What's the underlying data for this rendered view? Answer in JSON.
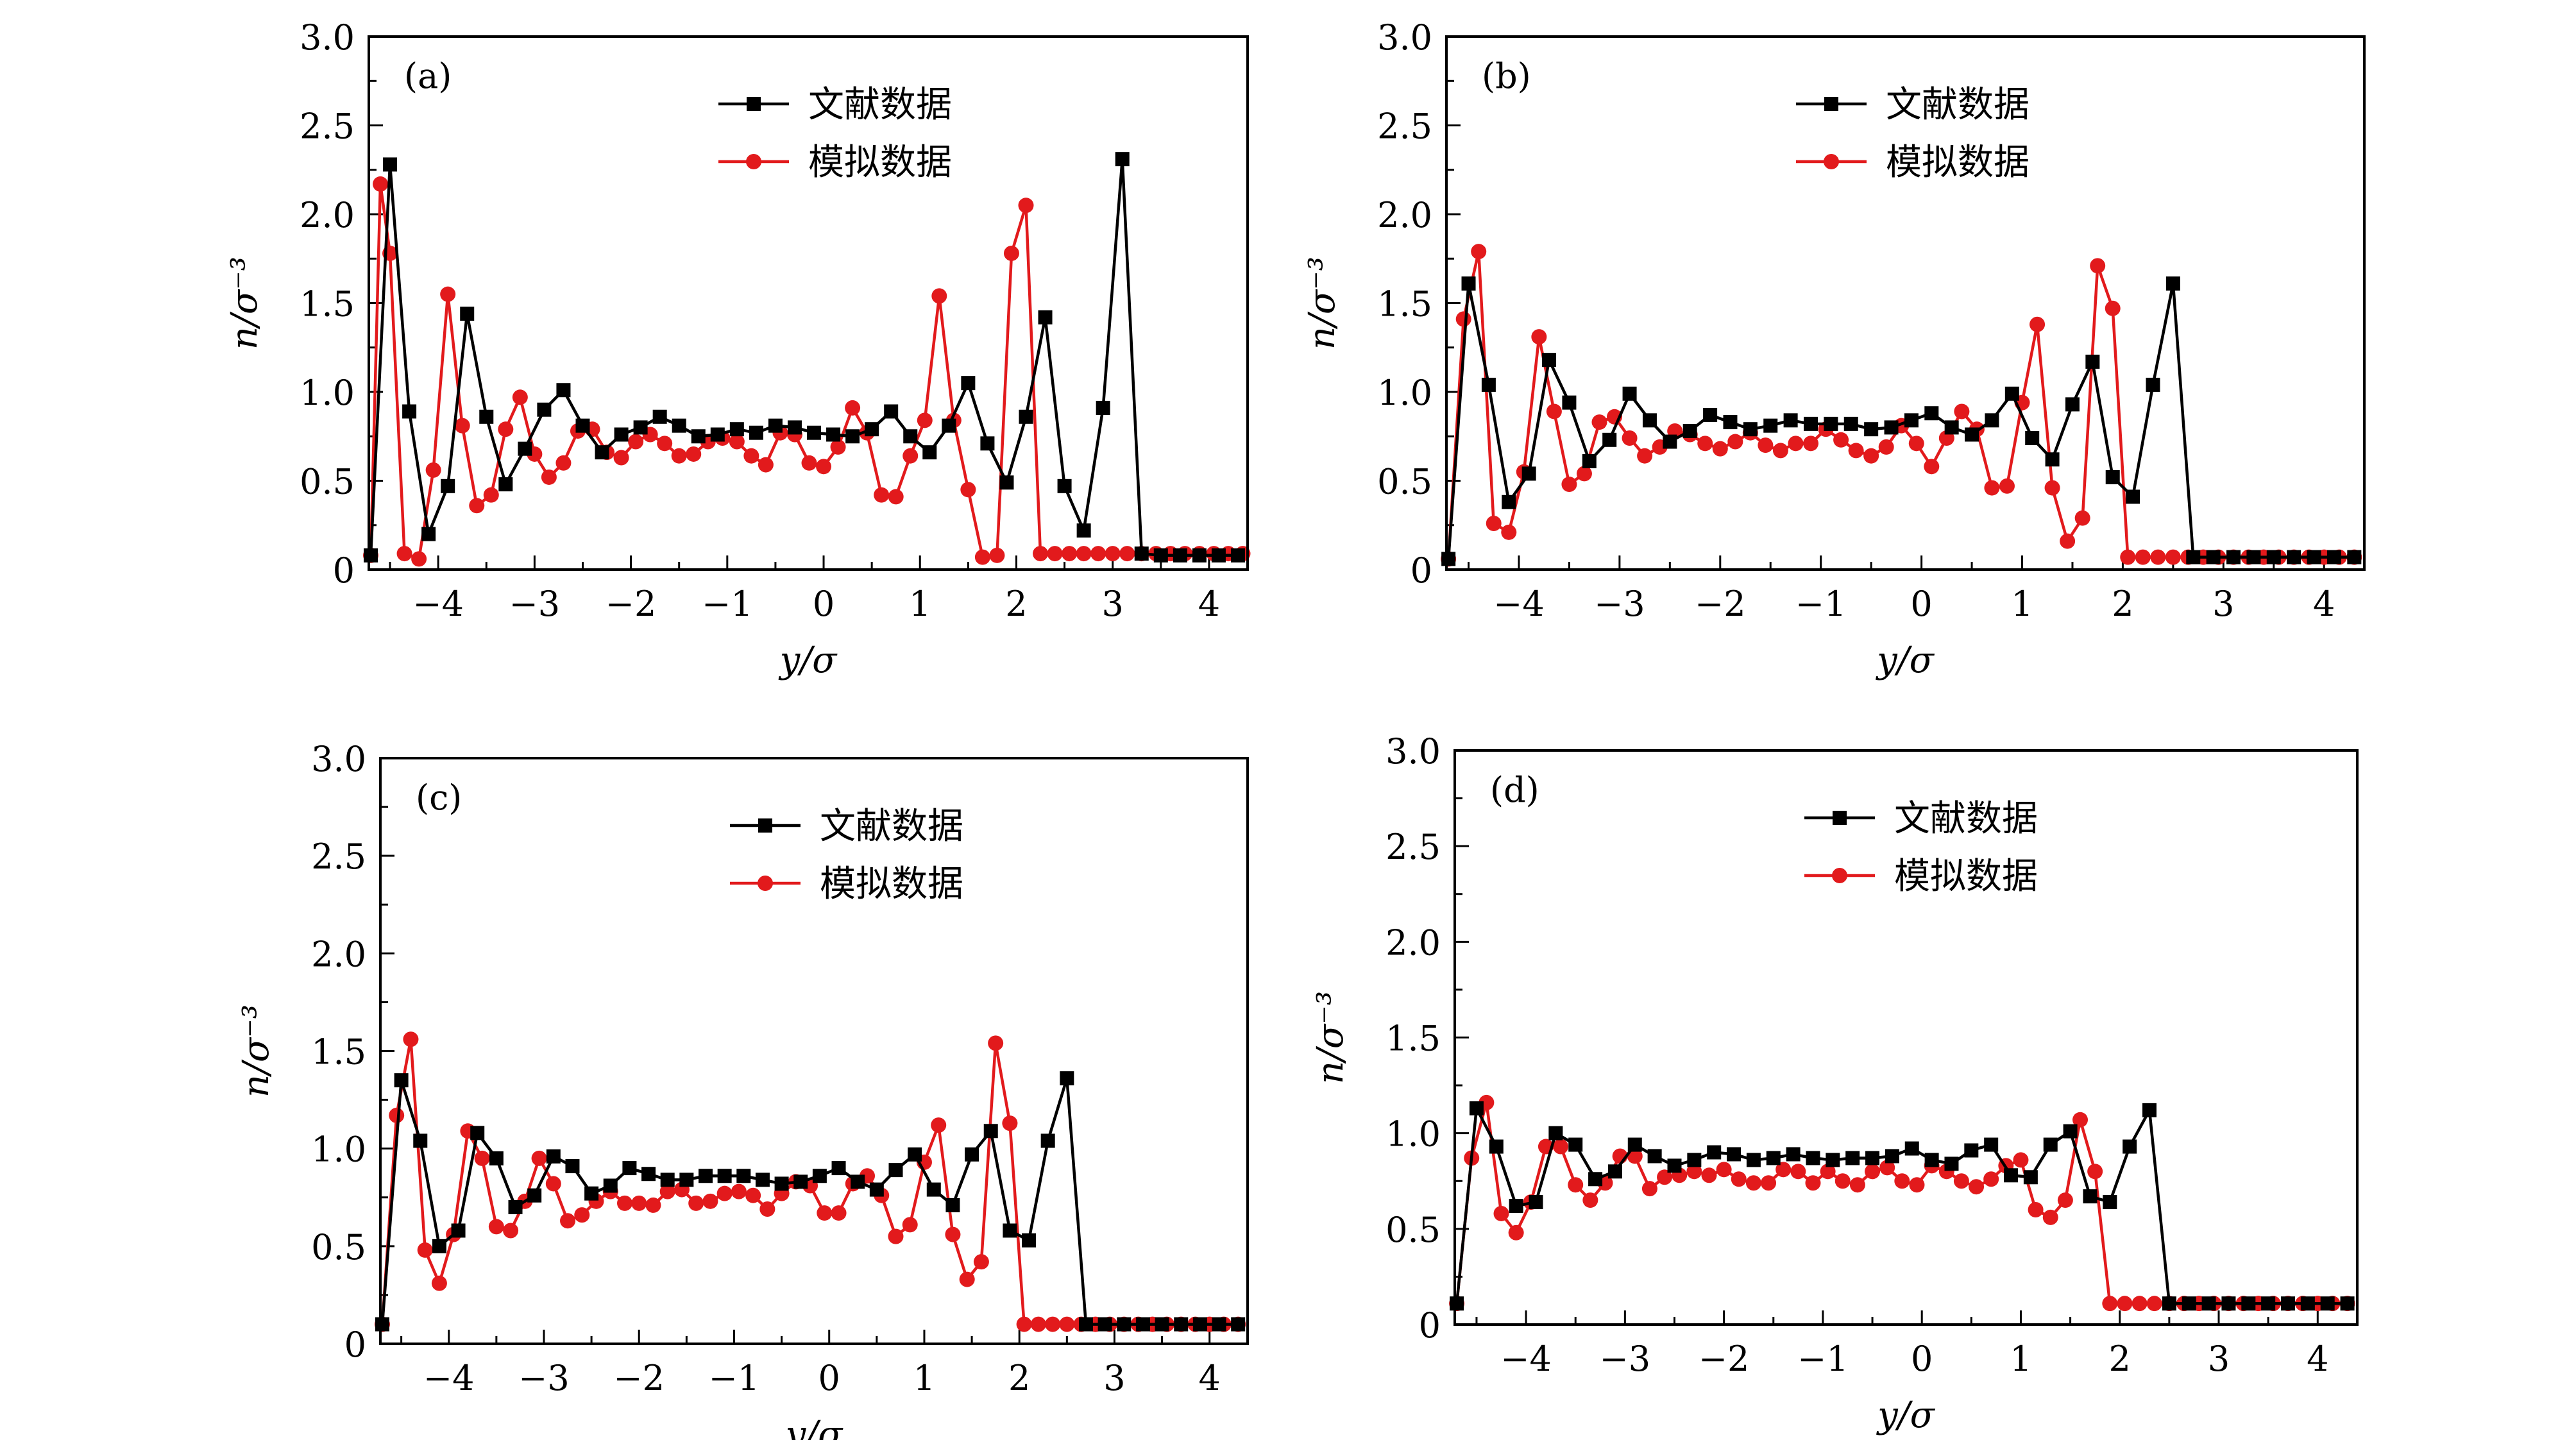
{
  "legend_labels": {
    "literature": "文献数据",
    "simulation": "模拟数据"
  },
  "colors": {
    "literature": "#000000",
    "simulation": "#e21a1c"
  },
  "axis_labels": {
    "x": "y/σ",
    "y": "n/σ⁻³"
  },
  "chart_data": [
    {
      "type": "line",
      "panel_label": "(a)",
      "xlabel": "y/σ",
      "ylabel": "n/σ⁻³",
      "xlim": [
        -4.72,
        4.4
      ],
      "ylim": [
        0,
        3.0
      ],
      "x_ticks": [
        -4,
        -3,
        -2,
        -1,
        0,
        1,
        2,
        3,
        4
      ],
      "y_ticks": [
        0,
        0.5,
        1.0,
        1.5,
        2.0,
        2.5,
        3.0
      ],
      "legend_position": "top-center",
      "series": [
        {
          "name": "文献数据",
          "marker": "square",
          "color": "#000000",
          "x": [
            -4.7,
            -4.5,
            -4.3,
            -4.1,
            -3.9,
            -3.7,
            -3.5,
            -3.3,
            -3.1,
            -2.9,
            -2.7,
            -2.5,
            -2.3,
            -2.1,
            -1.9,
            -1.7,
            -1.5,
            -1.3,
            -1.1,
            -0.9,
            -0.7,
            -0.5,
            -0.3,
            -0.1,
            0.1,
            0.3,
            0.5,
            0.7,
            0.9,
            1.1,
            1.3,
            1.5,
            1.7,
            1.9,
            2.1,
            2.3,
            2.5,
            2.7,
            2.9,
            3.1,
            3.3,
            3.5,
            3.7,
            3.9,
            4.1,
            4.3
          ],
          "y": [
            0.08,
            2.28,
            0.89,
            0.2,
            0.47,
            1.44,
            0.86,
            0.48,
            0.68,
            0.9,
            1.01,
            0.81,
            0.66,
            0.76,
            0.8,
            0.86,
            0.81,
            0.75,
            0.76,
            0.79,
            0.77,
            0.81,
            0.8,
            0.77,
            0.76,
            0.75,
            0.79,
            0.89,
            0.75,
            0.66,
            0.81,
            1.05,
            0.71,
            0.49,
            0.86,
            1.42,
            0.47,
            0.22,
            0.91,
            2.31,
            0.09,
            0.08,
            0.08,
            0.08,
            0.08,
            0.08
          ]
        },
        {
          "name": "模拟数据",
          "marker": "circle",
          "color": "#e21a1c",
          "x": [
            -4.7,
            -4.6,
            -4.5,
            -4.35,
            -4.2,
            -4.05,
            -3.9,
            -3.75,
            -3.6,
            -3.45,
            -3.3,
            -3.15,
            -3.0,
            -2.85,
            -2.7,
            -2.55,
            -2.4,
            -2.25,
            -2.1,
            -1.95,
            -1.8,
            -1.65,
            -1.5,
            -1.35,
            -1.2,
            -1.05,
            -0.9,
            -0.75,
            -0.6,
            -0.45,
            -0.3,
            -0.15,
            0.0,
            0.15,
            0.3,
            0.45,
            0.6,
            0.75,
            0.9,
            1.05,
            1.2,
            1.35,
            1.5,
            1.65,
            1.8,
            1.95,
            2.1,
            2.25,
            2.4,
            2.55,
            2.7,
            2.85,
            3.0,
            3.15,
            3.3,
            3.45,
            3.6,
            3.75,
            3.9,
            4.05,
            4.2,
            4.35
          ],
          "y": [
            0.08,
            2.17,
            1.78,
            0.09,
            0.06,
            0.56,
            1.55,
            0.81,
            0.36,
            0.42,
            0.79,
            0.97,
            0.65,
            0.52,
            0.6,
            0.78,
            0.79,
            0.66,
            0.63,
            0.72,
            0.76,
            0.71,
            0.64,
            0.65,
            0.72,
            0.74,
            0.72,
            0.64,
            0.59,
            0.77,
            0.76,
            0.6,
            0.58,
            0.69,
            0.91,
            0.77,
            0.42,
            0.41,
            0.64,
            0.84,
            1.54,
            0.84,
            0.45,
            0.07,
            0.08,
            1.78,
            2.05,
            0.09,
            0.09,
            0.09,
            0.09,
            0.09,
            0.09,
            0.09,
            0.09,
            0.09,
            0.09,
            0.09,
            0.09,
            0.09,
            0.09,
            0.09
          ]
        }
      ]
    },
    {
      "type": "line",
      "panel_label": "(b)",
      "xlabel": "y/σ",
      "ylabel": "n/σ⁻³",
      "xlim": [
        -4.72,
        4.4
      ],
      "ylim": [
        0,
        3.0
      ],
      "x_ticks": [
        -4,
        -3,
        -2,
        -1,
        0,
        1,
        2,
        3,
        4
      ],
      "y_ticks": [
        0,
        0.5,
        1.0,
        1.5,
        2.0,
        2.5,
        3.0
      ],
      "legend_position": "top-center",
      "series": [
        {
          "name": "文献数据",
          "marker": "square",
          "color": "#000000",
          "x": [
            -4.7,
            -4.5,
            -4.3,
            -4.1,
            -3.9,
            -3.7,
            -3.5,
            -3.3,
            -3.1,
            -2.9,
            -2.7,
            -2.5,
            -2.3,
            -2.1,
            -1.9,
            -1.7,
            -1.5,
            -1.3,
            -1.1,
            -0.9,
            -0.7,
            -0.5,
            -0.3,
            -0.1,
            0.1,
            0.3,
            0.5,
            0.7,
            0.9,
            1.1,
            1.3,
            1.5,
            1.7,
            1.9,
            2.1,
            2.3,
            2.5,
            2.7,
            2.9,
            3.1,
            3.3,
            3.5,
            3.7,
            3.9,
            4.1,
            4.3
          ],
          "y": [
            0.06,
            1.61,
            1.04,
            0.38,
            0.54,
            1.18,
            0.94,
            0.61,
            0.73,
            0.99,
            0.84,
            0.72,
            0.78,
            0.87,
            0.83,
            0.79,
            0.81,
            0.84,
            0.82,
            0.82,
            0.82,
            0.79,
            0.8,
            0.84,
            0.88,
            0.8,
            0.76,
            0.84,
            0.99,
            0.74,
            0.62,
            0.93,
            1.17,
            0.52,
            0.41,
            1.04,
            1.61,
            0.07,
            0.07,
            0.07,
            0.07,
            0.07,
            0.07,
            0.07,
            0.07,
            0.07
          ]
        },
        {
          "name": "模拟数据",
          "marker": "circle",
          "color": "#e21a1c",
          "x": [
            -4.7,
            -4.55,
            -4.4,
            -4.25,
            -4.1,
            -3.95,
            -3.8,
            -3.65,
            -3.5,
            -3.35,
            -3.2,
            -3.05,
            -2.9,
            -2.75,
            -2.6,
            -2.45,
            -2.3,
            -2.15,
            -2.0,
            -1.85,
            -1.7,
            -1.55,
            -1.4,
            -1.25,
            -1.1,
            -0.95,
            -0.8,
            -0.65,
            -0.5,
            -0.35,
            -0.2,
            -0.05,
            0.1,
            0.25,
            0.4,
            0.55,
            0.7,
            0.85,
            1.0,
            1.15,
            1.3,
            1.45,
            1.6,
            1.75,
            1.9,
            2.05,
            2.2,
            2.35,
            2.5,
            2.65,
            2.8,
            2.95,
            3.1,
            3.25,
            3.4,
            3.55,
            3.7,
            3.85,
            4.0,
            4.15,
            4.3
          ],
          "y": [
            0.06,
            1.41,
            1.79,
            0.26,
            0.21,
            0.55,
            1.31,
            0.89,
            0.48,
            0.54,
            0.83,
            0.86,
            0.74,
            0.64,
            0.69,
            0.78,
            0.76,
            0.71,
            0.68,
            0.72,
            0.77,
            0.7,
            0.67,
            0.71,
            0.71,
            0.79,
            0.73,
            0.67,
            0.64,
            0.69,
            0.81,
            0.71,
            0.58,
            0.74,
            0.89,
            0.79,
            0.46,
            0.47,
            0.94,
            1.38,
            0.46,
            0.16,
            0.29,
            1.71,
            1.47,
            0.07,
            0.07,
            0.07,
            0.07,
            0.07,
            0.07,
            0.07,
            0.07,
            0.07,
            0.07,
            0.07,
            0.07,
            0.07,
            0.07,
            0.07,
            0.07
          ]
        }
      ]
    },
    {
      "type": "line",
      "panel_label": "(c)",
      "xlabel": "y/σ",
      "ylabel": "n/σ⁻³",
      "xlim": [
        -4.72,
        4.4
      ],
      "ylim": [
        0,
        3.0
      ],
      "x_ticks": [
        -4,
        -3,
        -2,
        -1,
        0,
        1,
        2,
        3,
        4
      ],
      "y_ticks": [
        0,
        0.5,
        1.0,
        1.5,
        2.0,
        2.5,
        3.0
      ],
      "legend_position": "top-center",
      "series": [
        {
          "name": "文献数据",
          "marker": "square",
          "color": "#000000",
          "x": [
            -4.7,
            -4.5,
            -4.3,
            -4.1,
            -3.9,
            -3.7,
            -3.5,
            -3.3,
            -3.1,
            -2.9,
            -2.7,
            -2.5,
            -2.3,
            -2.1,
            -1.9,
            -1.7,
            -1.5,
            -1.3,
            -1.1,
            -0.9,
            -0.7,
            -0.5,
            -0.3,
            -0.1,
            0.1,
            0.3,
            0.5,
            0.7,
            0.9,
            1.1,
            1.3,
            1.5,
            1.7,
            1.9,
            2.1,
            2.3,
            2.5,
            2.7,
            2.9,
            3.1,
            3.3,
            3.5,
            3.7,
            3.9,
            4.1,
            4.3
          ],
          "y": [
            0.1,
            1.35,
            1.04,
            0.5,
            0.58,
            1.08,
            0.95,
            0.7,
            0.76,
            0.96,
            0.91,
            0.77,
            0.81,
            0.9,
            0.87,
            0.84,
            0.84,
            0.86,
            0.86,
            0.86,
            0.84,
            0.82,
            0.83,
            0.86,
            0.9,
            0.83,
            0.79,
            0.89,
            0.97,
            0.79,
            0.71,
            0.97,
            1.09,
            0.58,
            0.53,
            1.04,
            1.36,
            0.1,
            0.1,
            0.1,
            0.1,
            0.1,
            0.1,
            0.1,
            0.1,
            0.1
          ]
        },
        {
          "name": "模拟数据",
          "marker": "circle",
          "color": "#e21a1c",
          "x": [
            -4.7,
            -4.55,
            -4.4,
            -4.25,
            -4.1,
            -3.95,
            -3.8,
            -3.65,
            -3.5,
            -3.35,
            -3.2,
            -3.05,
            -2.9,
            -2.75,
            -2.6,
            -2.45,
            -2.3,
            -2.15,
            -2.0,
            -1.85,
            -1.7,
            -1.55,
            -1.4,
            -1.25,
            -1.1,
            -0.95,
            -0.8,
            -0.65,
            -0.5,
            -0.35,
            -0.2,
            -0.05,
            0.1,
            0.25,
            0.4,
            0.55,
            0.7,
            0.85,
            1.0,
            1.15,
            1.3,
            1.45,
            1.6,
            1.75,
            1.9,
            2.05,
            2.2,
            2.35,
            2.5,
            2.65,
            2.8,
            2.95,
            3.1,
            3.25,
            3.4,
            3.55,
            3.7,
            3.85,
            4.0,
            4.15,
            4.3
          ],
          "y": [
            0.1,
            1.17,
            1.56,
            0.48,
            0.31,
            0.56,
            1.09,
            0.95,
            0.6,
            0.58,
            0.73,
            0.95,
            0.82,
            0.63,
            0.66,
            0.73,
            0.78,
            0.72,
            0.72,
            0.71,
            0.78,
            0.79,
            0.72,
            0.73,
            0.77,
            0.78,
            0.76,
            0.69,
            0.77,
            0.83,
            0.81,
            0.67,
            0.67,
            0.82,
            0.86,
            0.76,
            0.55,
            0.61,
            0.93,
            1.12,
            0.56,
            0.33,
            0.42,
            1.54,
            1.13,
            0.1,
            0.1,
            0.1,
            0.1,
            0.1,
            0.1,
            0.1,
            0.1,
            0.1,
            0.1,
            0.1,
            0.1,
            0.1,
            0.1,
            0.1,
            0.1
          ]
        }
      ]
    },
    {
      "type": "line",
      "panel_label": "(d)",
      "xlabel": "y/σ",
      "ylabel": "n/σ⁻³",
      "xlim": [
        -4.72,
        4.4
      ],
      "ylim": [
        0,
        3.0
      ],
      "x_ticks": [
        -4,
        -3,
        -2,
        -1,
        0,
        1,
        2,
        3,
        4
      ],
      "y_ticks": [
        0,
        0.5,
        1.0,
        1.5,
        2.0,
        2.5,
        3.0
      ],
      "legend_position": "top-center",
      "series": [
        {
          "name": "文献数据",
          "marker": "square",
          "color": "#000000",
          "x": [
            -4.7,
            -4.5,
            -4.3,
            -4.1,
            -3.9,
            -3.7,
            -3.5,
            -3.3,
            -3.1,
            -2.9,
            -2.7,
            -2.5,
            -2.3,
            -2.1,
            -1.9,
            -1.7,
            -1.5,
            -1.3,
            -1.1,
            -0.9,
            -0.7,
            -0.5,
            -0.3,
            -0.1,
            0.1,
            0.3,
            0.5,
            0.7,
            0.9,
            1.1,
            1.3,
            1.5,
            1.7,
            1.9,
            2.1,
            2.3,
            2.5,
            2.7,
            2.9,
            3.1,
            3.3,
            3.5,
            3.7,
            3.9,
            4.1,
            4.3
          ],
          "y": [
            0.11,
            1.13,
            0.93,
            0.62,
            0.64,
            1.0,
            0.94,
            0.76,
            0.8,
            0.94,
            0.88,
            0.83,
            0.86,
            0.9,
            0.89,
            0.86,
            0.87,
            0.89,
            0.87,
            0.86,
            0.87,
            0.87,
            0.88,
            0.92,
            0.86,
            0.84,
            0.91,
            0.94,
            0.78,
            0.77,
            0.94,
            1.01,
            0.67,
            0.64,
            0.93,
            1.12,
            0.11,
            0.11,
            0.11,
            0.11,
            0.11,
            0.11,
            0.11,
            0.11,
            0.11,
            0.11
          ]
        },
        {
          "name": "模拟数据",
          "marker": "circle",
          "color": "#e21a1c",
          "x": [
            -4.7,
            -4.55,
            -4.4,
            -4.25,
            -4.1,
            -3.95,
            -3.8,
            -3.65,
            -3.5,
            -3.35,
            -3.2,
            -3.05,
            -2.9,
            -2.75,
            -2.6,
            -2.45,
            -2.3,
            -2.15,
            -2.0,
            -1.85,
            -1.7,
            -1.55,
            -1.4,
            -1.25,
            -1.1,
            -0.95,
            -0.8,
            -0.65,
            -0.5,
            -0.35,
            -0.2,
            -0.05,
            0.1,
            0.25,
            0.4,
            0.55,
            0.7,
            0.85,
            1.0,
            1.15,
            1.3,
            1.45,
            1.6,
            1.75,
            1.9,
            2.05,
            2.2,
            2.35,
            2.5,
            2.65,
            2.8,
            2.95,
            3.1,
            3.25,
            3.4,
            3.55,
            3.7,
            3.85,
            4.0,
            4.15,
            4.3
          ],
          "y": [
            0.11,
            0.87,
            1.16,
            0.58,
            0.48,
            0.64,
            0.93,
            0.93,
            0.73,
            0.65,
            0.74,
            0.88,
            0.88,
            0.71,
            0.77,
            0.78,
            0.8,
            0.78,
            0.81,
            0.76,
            0.74,
            0.74,
            0.81,
            0.8,
            0.74,
            0.8,
            0.75,
            0.73,
            0.8,
            0.82,
            0.75,
            0.73,
            0.83,
            0.8,
            0.75,
            0.72,
            0.76,
            0.83,
            0.86,
            0.6,
            0.56,
            0.65,
            1.07,
            0.8,
            0.11,
            0.11,
            0.11,
            0.11,
            0.11,
            0.11,
            0.11,
            0.11,
            0.11,
            0.11,
            0.11,
            0.11,
            0.11,
            0.11,
            0.11,
            0.11,
            0.11
          ]
        }
      ]
    }
  ]
}
